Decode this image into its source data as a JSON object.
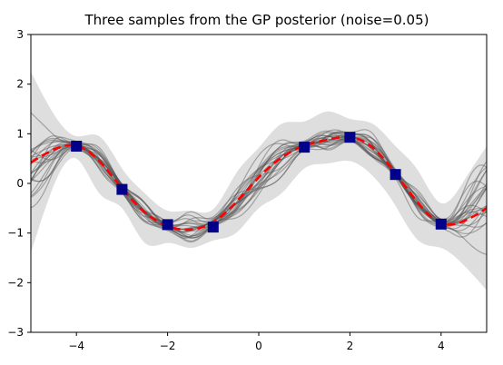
{
  "chart_data": {
    "type": "line",
    "title": "Three samples from the GP posterior (noise=0.05)",
    "xlabel": "",
    "ylabel": "",
    "xlim": [
      -5,
      5
    ],
    "ylim": [
      -3,
      3
    ],
    "xticks": [
      -4,
      -2,
      0,
      2,
      4
    ],
    "yticks": [
      3,
      2,
      1,
      0,
      -1,
      -2,
      -3
    ],
    "grid": false,
    "colors": {
      "mean": "#ff0000",
      "band": "#d8d8d8",
      "samples": "#555555",
      "markers": "#00008b",
      "axes": "#000000"
    },
    "posterior_mean": {
      "x": [
        -5,
        -4.5,
        -4,
        -3.5,
        -3,
        -2.5,
        -2,
        -1.5,
        -1,
        -0.5,
        0,
        0.5,
        1,
        1.5,
        2,
        2.5,
        3,
        3.5,
        4,
        4.5,
        5
      ],
      "y": [
        0.42,
        0.68,
        0.76,
        0.45,
        -0.1,
        -0.58,
        -0.86,
        -0.93,
        -0.78,
        -0.38,
        0.12,
        0.52,
        0.76,
        0.88,
        0.93,
        0.72,
        0.2,
        -0.4,
        -0.8,
        -0.76,
        -0.5
      ]
    },
    "confidence_band": {
      "x": [
        -5,
        -4.5,
        -4,
        -3.5,
        -3,
        -2.5,
        -2,
        -1.5,
        -1,
        -0.5,
        0,
        0.5,
        1,
        1.5,
        2,
        2.5,
        3,
        3.5,
        4,
        4.5,
        5
      ],
      "upper": [
        2.25,
        1.4,
        0.95,
        0.95,
        0.3,
        -0.2,
        -0.55,
        -0.55,
        -0.52,
        0.2,
        0.72,
        1.2,
        1.25,
        1.45,
        1.3,
        1.2,
        0.75,
        0.25,
        -0.4,
        0.05,
        0.75
      ],
      "lower": [
        -1.4,
        -0.05,
        0.5,
        -0.2,
        -0.5,
        -1.2,
        -1.2,
        -1.3,
        -1.15,
        -1.0,
        -0.5,
        -0.2,
        0.3,
        0.4,
        0.45,
        0.15,
        -0.45,
        -1.15,
        -1.3,
        -1.65,
        -2.15
      ]
    },
    "training_points": {
      "x": [
        -4,
        -3,
        -2,
        -1,
        1,
        2,
        3,
        4
      ],
      "y": [
        0.75,
        -0.12,
        -0.83,
        -0.88,
        0.73,
        0.93,
        0.18,
        -0.82
      ]
    }
  }
}
